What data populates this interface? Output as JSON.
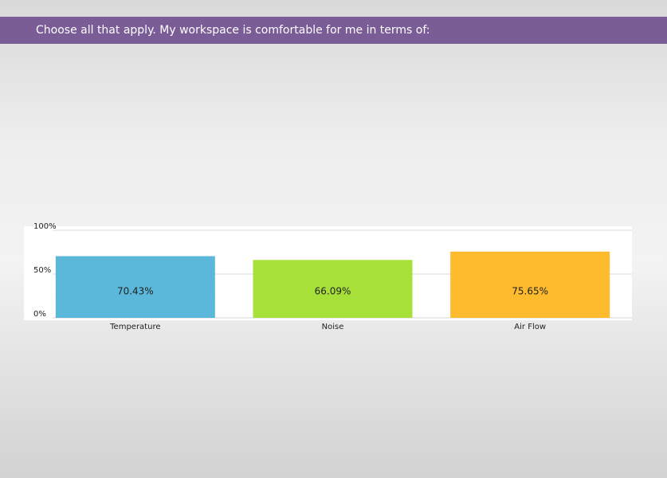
{
  "header": {
    "title": "Choose all that apply. My workspace is comfortable for me in terms of:"
  },
  "chart_data": {
    "type": "bar",
    "categories": [
      "Temperature",
      "Noise",
      "Air Flow"
    ],
    "values": [
      70.43,
      66.09,
      75.65
    ],
    "value_labels": [
      "70.43%",
      "66.09%",
      "75.65%"
    ],
    "colors": [
      "#5bb8db",
      "#a8e03a",
      "#fdbb2d"
    ],
    "ylim": [
      0,
      100
    ],
    "yticks": [
      {
        "value": 0,
        "label": "0%"
      },
      {
        "value": 50,
        "label": "50%"
      },
      {
        "value": 100,
        "label": "100%"
      }
    ],
    "grid": true
  }
}
